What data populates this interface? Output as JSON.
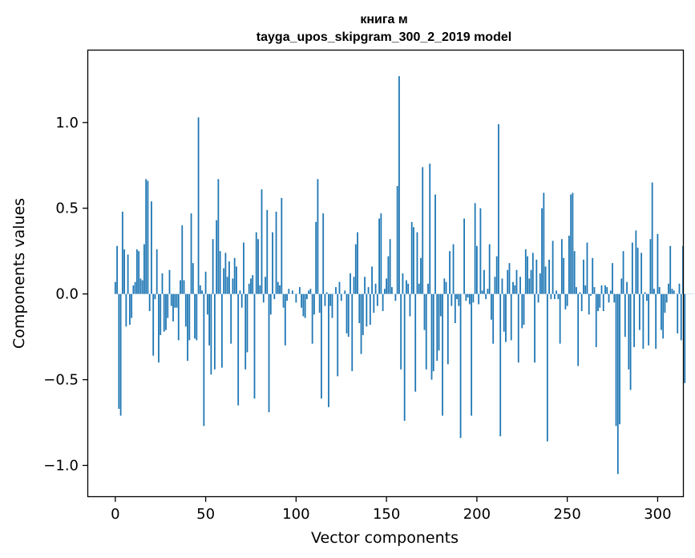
{
  "chart_data": {
    "type": "bar",
    "title_line1": "книга м",
    "title_line2": "tayga_upos_skipgram_300_2_2019 model",
    "xlabel": "Vector components",
    "ylabel": "Components values",
    "xlim": [
      -15,
      314
    ],
    "ylim": [
      -1.18,
      1.42
    ],
    "xticks": [
      0,
      50,
      100,
      150,
      200,
      250,
      300
    ],
    "xtick_labels": [
      "0",
      "50",
      "100",
      "150",
      "200",
      "250",
      "300"
    ],
    "yticks": [
      -1.0,
      -0.5,
      0.0,
      0.5,
      1.0
    ],
    "ytick_labels": [
      "−1.0",
      "−0.5",
      "0.0",
      "0.5",
      "1.0"
    ],
    "bar_color": "#1f77b4",
    "grid": false,
    "values": [
      0.07,
      0.28,
      -0.67,
      -0.71,
      0.48,
      0.26,
      -0.19,
      0.23,
      -0.18,
      -0.14,
      0.05,
      0.07,
      0.26,
      0.25,
      0.09,
      0.08,
      0.29,
      0.67,
      0.66,
      -0.1,
      0.54,
      -0.36,
      -0.03,
      0.26,
      -0.4,
      -0.24,
      0.12,
      -0.22,
      -0.21,
      -0.14,
      0.14,
      -0.07,
      -0.16,
      -0.08,
      -0.08,
      -0.27,
      0.08,
      0.4,
      0.08,
      -0.19,
      -0.39,
      -0.27,
      0.47,
      0.18,
      -0.26,
      -0.27,
      1.03,
      0.05,
      0.02,
      -0.77,
      0.13,
      -0.12,
      -0.3,
      -0.47,
      0.32,
      -0.44,
      0.43,
      0.67,
      0.25,
      -0.43,
      0.15,
      0.24,
      0.1,
      0.19,
      -0.29,
      0.09,
      0.21,
      0.16,
      -0.65,
      0.02,
      -0.08,
      0.3,
      -0.44,
      -0.34,
      0.06,
      0.09,
      0.11,
      -0.61,
      0.36,
      0.32,
      0.05,
      0.61,
      -0.05,
      0.1,
      0.49,
      -0.69,
      -0.12,
      0.36,
      -0.03,
      0.48,
      0.07,
      0.05,
      0.56,
      -0.08,
      -0.3,
      -0.04,
      0.03,
      0.0,
      0.02,
      0.0,
      -0.05,
      0.0,
      0.04,
      -0.08,
      -0.13,
      -0.14,
      -0.03,
      0.02,
      0.03,
      -0.29,
      -0.12,
      0.42,
      0.67,
      -0.11,
      -0.61,
      0.47,
      -0.07,
      0.01,
      -0.66,
      -0.07,
      -0.14,
      0.0,
      0.04,
      -0.48,
      0.07,
      -0.04,
      0.0,
      0.02,
      -0.23,
      -0.25,
      0.12,
      -0.45,
      0.1,
      0.29,
      0.36,
      -0.17,
      -0.35,
      -0.24,
      0.1,
      -0.19,
      0.04,
      -0.18,
      0.16,
      -0.11,
      0.06,
      -0.07,
      0.44,
      0.47,
      -0.1,
      0.03,
      0.09,
      0.22,
      0.32,
      0.04,
      0.0,
      -0.04,
      0.63,
      1.27,
      -0.44,
      0.12,
      -0.74,
      0.08,
      0.06,
      -0.13,
      0.42,
      0.39,
      -0.57,
      0.36,
      0.06,
      0.21,
      0.74,
      -0.21,
      -0.44,
      0.06,
      0.76,
      -0.5,
      -0.45,
      0.58,
      -0.39,
      -0.33,
      -0.13,
      -0.71,
      0.09,
      0.07,
      -0.41,
      0.25,
      -0.07,
      0.29,
      -0.17,
      -0.03,
      -0.07,
      -0.84,
      0.0,
      0.44,
      -0.04,
      -0.02,
      -0.06,
      -0.71,
      -0.05,
      0.53,
      0.28,
      -0.06,
      0.5,
      0.02,
      0.14,
      -0.03,
      0.03,
      0.29,
      -0.15,
      -0.29,
      0.1,
      0.22,
      0.99,
      -0.83,
      0.09,
      -0.22,
      -0.28,
      0.14,
      0.18,
      -0.27,
      0.07,
      0.05,
      0.14,
      -0.4,
      0.1,
      -0.2,
      -0.18,
      0.26,
      0.22,
      0.09,
      0.14,
      0.24,
      -0.4,
      0.2,
      -0.05,
      0.12,
      0.5,
      0.59,
      0.16,
      -0.86,
      0.2,
      -0.03,
      0.31,
      -0.03,
      0.02,
      -0.03,
      -0.29,
      0.32,
      0.21,
      -0.09,
      -0.07,
      0.34,
      0.58,
      0.59,
      0.25,
      0.04,
      -0.42,
      0.01,
      -0.1,
      0.2,
      0.05,
      0.3,
      -0.12,
      -0.01,
      0.21,
      0.04,
      -0.31,
      -0.1,
      -0.08,
      0.05,
      -0.1,
      0.05,
      0.04,
      -0.05,
      0.02,
      0.18,
      -0.05,
      -0.77,
      -1.05,
      -0.76,
      0.09,
      0.25,
      -0.25,
      0.07,
      -0.44,
      -0.56,
      0.3,
      -0.31,
      0.37,
      0.27,
      -0.21,
      0.24,
      -0.32,
      0.01,
      -0.04,
      -0.3,
      0.32,
      0.65,
      0.03,
      -0.32,
      0.35,
      0.04,
      -0.21,
      -0.26,
      -0.11,
      -0.05,
      0.06,
      0.28,
      0.03,
      0.02,
      0.0,
      -0.23,
      0.06,
      -0.27,
      0.28,
      -0.52,
      0.0,
      0.0,
      0.0,
      0.0,
      0.0
    ]
  }
}
